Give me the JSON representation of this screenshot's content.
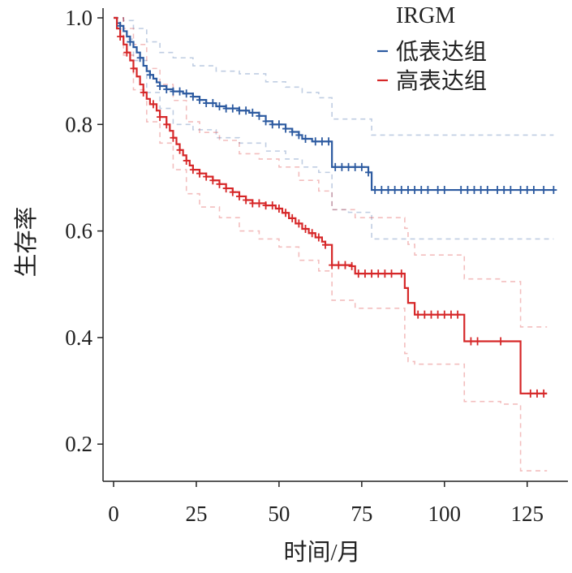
{
  "chart_data": {
    "type": "line",
    "subtype": "kaplan-meier",
    "xlabel": "时间/月",
    "ylabel": "生存率",
    "xlim": [
      -2,
      135
    ],
    "ylim": [
      0.1,
      1.02
    ],
    "xticks": [
      0,
      25,
      50,
      75,
      100,
      125
    ],
    "yticks": [
      0.2,
      0.4,
      0.6,
      0.8,
      1.0
    ],
    "ytick_labels": [
      "0.2",
      "0.4",
      "0.6",
      "0.8",
      "1.0"
    ],
    "grid": false,
    "legend": {
      "title": "IRGM",
      "position": "top-right"
    },
    "series": [
      {
        "name": "低表达组",
        "color": "#2c5aa0",
        "steps": [
          [
            0,
            1.0
          ],
          [
            1,
            0.99
          ],
          [
            2,
            0.985
          ],
          [
            3,
            0.975
          ],
          [
            4,
            0.965
          ],
          [
            5,
            0.955
          ],
          [
            6,
            0.945
          ],
          [
            7,
            0.935
          ],
          [
            8,
            0.925
          ],
          [
            9,
            0.91
          ],
          [
            10,
            0.9
          ],
          [
            11,
            0.893
          ],
          [
            12,
            0.886
          ],
          [
            13,
            0.879
          ],
          [
            14,
            0.872
          ],
          [
            16,
            0.866
          ],
          [
            18,
            0.862
          ],
          [
            21,
            0.858
          ],
          [
            24,
            0.852
          ],
          [
            26,
            0.846
          ],
          [
            28,
            0.84
          ],
          [
            31,
            0.834
          ],
          [
            34,
            0.83
          ],
          [
            38,
            0.826
          ],
          [
            41,
            0.822
          ],
          [
            44,
            0.816
          ],
          [
            46,
            0.806
          ],
          [
            48,
            0.8
          ],
          [
            52,
            0.792
          ],
          [
            54,
            0.786
          ],
          [
            56,
            0.78
          ],
          [
            57,
            0.773
          ],
          [
            60,
            0.768
          ],
          [
            66,
            0.72
          ],
          [
            71,
            0.72
          ],
          [
            77,
            0.71
          ],
          [
            78,
            0.677
          ],
          [
            133,
            0.677
          ]
        ],
        "censored_x": [
          2,
          5,
          8,
          11,
          14,
          16,
          18,
          20,
          22,
          24,
          26,
          28,
          30,
          32,
          34,
          36,
          38,
          40,
          42,
          44,
          46,
          48,
          50,
          52,
          54,
          56,
          58,
          61,
          63,
          65,
          67,
          69,
          71,
          73,
          75,
          77,
          79,
          81,
          83,
          85,
          87,
          89,
          91,
          93,
          95,
          98,
          100,
          105,
          107,
          109,
          111,
          113,
          116,
          118,
          120,
          123,
          125,
          127,
          130,
          133
        ],
        "ci_upper": [
          [
            0,
            1.0
          ],
          [
            3,
            0.995
          ],
          [
            6,
            0.98
          ],
          [
            10,
            0.955
          ],
          [
            14,
            0.935
          ],
          [
            18,
            0.925
          ],
          [
            24,
            0.91
          ],
          [
            31,
            0.9
          ],
          [
            38,
            0.895
          ],
          [
            46,
            0.88
          ],
          [
            52,
            0.87
          ],
          [
            57,
            0.86
          ],
          [
            62,
            0.85
          ],
          [
            66,
            0.81
          ],
          [
            71,
            0.81
          ],
          [
            78,
            0.78
          ],
          [
            133,
            0.78
          ]
        ],
        "ci_lower": [
          [
            0,
            1.0
          ],
          [
            3,
            0.96
          ],
          [
            6,
            0.92
          ],
          [
            10,
            0.86
          ],
          [
            14,
            0.83
          ],
          [
            18,
            0.8
          ],
          [
            24,
            0.79
          ],
          [
            31,
            0.775
          ],
          [
            38,
            0.765
          ],
          [
            46,
            0.75
          ],
          [
            52,
            0.735
          ],
          [
            57,
            0.72
          ],
          [
            62,
            0.71
          ],
          [
            66,
            0.64
          ],
          [
            71,
            0.635
          ],
          [
            78,
            0.585
          ],
          [
            133,
            0.585
          ]
        ]
      },
      {
        "name": "高表达组",
        "color": "#d62728",
        "steps": [
          [
            0,
            1.0
          ],
          [
            1,
            0.98
          ],
          [
            2,
            0.965
          ],
          [
            3,
            0.95
          ],
          [
            4,
            0.935
          ],
          [
            5,
            0.92
          ],
          [
            6,
            0.905
          ],
          [
            7,
            0.89
          ],
          [
            8,
            0.875
          ],
          [
            9,
            0.86
          ],
          [
            10,
            0.848
          ],
          [
            11,
            0.838
          ],
          [
            13,
            0.826
          ],
          [
            14,
            0.814
          ],
          [
            16,
            0.8
          ],
          [
            17,
            0.788
          ],
          [
            18,
            0.775
          ],
          [
            19,
            0.763
          ],
          [
            20,
            0.752
          ],
          [
            21,
            0.742
          ],
          [
            22,
            0.732
          ],
          [
            23,
            0.723
          ],
          [
            24,
            0.715
          ],
          [
            26,
            0.708
          ],
          [
            28,
            0.702
          ],
          [
            30,
            0.695
          ],
          [
            32,
            0.688
          ],
          [
            34,
            0.68
          ],
          [
            36,
            0.673
          ],
          [
            38,
            0.665
          ],
          [
            40,
            0.658
          ],
          [
            42,
            0.652
          ],
          [
            46,
            0.648
          ],
          [
            49,
            0.642
          ],
          [
            51,
            0.634
          ],
          [
            53,
            0.624
          ],
          [
            55,
            0.614
          ],
          [
            57,
            0.604
          ],
          [
            59,
            0.596
          ],
          [
            61,
            0.588
          ],
          [
            63,
            0.58
          ],
          [
            64,
            0.574
          ],
          [
            66,
            0.536
          ],
          [
            72,
            0.534
          ],
          [
            73,
            0.52
          ],
          [
            88,
            0.493
          ],
          [
            89,
            0.465
          ],
          [
            91,
            0.443
          ],
          [
            106,
            0.393
          ],
          [
            117,
            0.393
          ],
          [
            123,
            0.295
          ],
          [
            131,
            0.295
          ]
        ],
        "censored_x": [
          2,
          4,
          6,
          9,
          12,
          14,
          16,
          18,
          20,
          22,
          24,
          26,
          28,
          30,
          32,
          34,
          36,
          38,
          40,
          42,
          44,
          46,
          48,
          50,
          52,
          54,
          56,
          58,
          60,
          62,
          64,
          66,
          68,
          70,
          72,
          74,
          76,
          78,
          80,
          82,
          84,
          87,
          92,
          94,
          96,
          98,
          100,
          102,
          104,
          108,
          110,
          117,
          126,
          128,
          130
        ],
        "ci_upper": [
          [
            0,
            1.0
          ],
          [
            3,
            0.98
          ],
          [
            6,
            0.95
          ],
          [
            10,
            0.905
          ],
          [
            14,
            0.875
          ],
          [
            18,
            0.845
          ],
          [
            22,
            0.805
          ],
          [
            26,
            0.785
          ],
          [
            32,
            0.77
          ],
          [
            38,
            0.745
          ],
          [
            44,
            0.735
          ],
          [
            50,
            0.72
          ],
          [
            56,
            0.695
          ],
          [
            62,
            0.675
          ],
          [
            66,
            0.64
          ],
          [
            73,
            0.625
          ],
          [
            88,
            0.605
          ],
          [
            89,
            0.575
          ],
          [
            91,
            0.555
          ],
          [
            106,
            0.51
          ],
          [
            117,
            0.505
          ],
          [
            123,
            0.42
          ],
          [
            131,
            0.42
          ]
        ],
        "ci_lower": [
          [
            0,
            1.0
          ],
          [
            3,
            0.93
          ],
          [
            6,
            0.865
          ],
          [
            10,
            0.805
          ],
          [
            14,
            0.765
          ],
          [
            18,
            0.715
          ],
          [
            22,
            0.67
          ],
          [
            26,
            0.645
          ],
          [
            32,
            0.625
          ],
          [
            38,
            0.6
          ],
          [
            44,
            0.585
          ],
          [
            50,
            0.57
          ],
          [
            56,
            0.545
          ],
          [
            62,
            0.525
          ],
          [
            66,
            0.47
          ],
          [
            73,
            0.455
          ],
          [
            88,
            0.37
          ],
          [
            89,
            0.355
          ],
          [
            91,
            0.35
          ],
          [
            106,
            0.28
          ],
          [
            117,
            0.275
          ],
          [
            123,
            0.15
          ],
          [
            131,
            0.15
          ]
        ]
      }
    ]
  }
}
